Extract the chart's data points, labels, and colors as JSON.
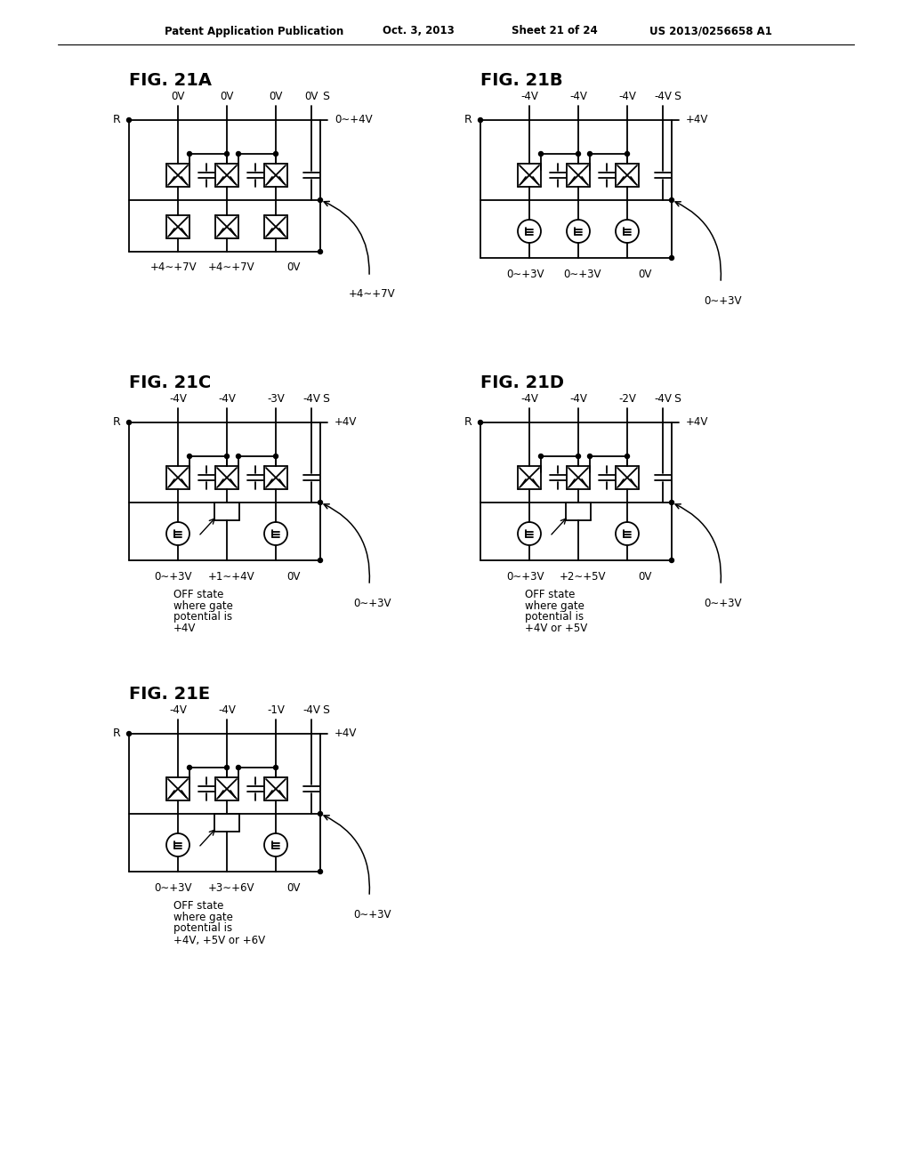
{
  "title_header": "Patent Application Publication",
  "date": "Oct. 3, 2013",
  "sheet": "Sheet 21 of 24",
  "patent": "US 2013/0256658 A1",
  "bg_color": "#ffffff",
  "fig21A": {
    "label": "FIG. 21A",
    "top_voltages": [
      "0V",
      "0V",
      "0V",
      "0V"
    ],
    "right_label": "0∼+4V",
    "bottom_labels": [
      "+4∼+7V",
      "+4∼+7V",
      "0V"
    ],
    "curve_label": "+4∼+7V",
    "has_circles": false
  },
  "fig21B": {
    "label": "FIG. 21B",
    "top_voltages": [
      "-4V",
      "-4V",
      "-4V",
      "-4V"
    ],
    "right_label": "+4V",
    "bottom_labels": [
      "0∼+3V",
      "0∼+3V",
      "0V"
    ],
    "curve_label": "0∼+3V",
    "has_circles": true
  },
  "fig21C": {
    "label": "FIG. 21C",
    "top_voltages": [
      "-4V",
      "-4V",
      "-3V",
      "-4V"
    ],
    "right_label": "+4V",
    "bottom_labels": [
      "0∼+3V",
      "+1∼+4V",
      "0V"
    ],
    "curve_label": "0∼+3V",
    "has_circles": true,
    "mid_special": true,
    "annotation": [
      "OFF state",
      "where gate",
      "potential is",
      "+4V"
    ]
  },
  "fig21D": {
    "label": "FIG. 21D",
    "top_voltages": [
      "-4V",
      "-4V",
      "-2V",
      "-4V"
    ],
    "right_label": "+4V",
    "bottom_labels": [
      "0∼+3V",
      "+2∼+5V",
      "0V"
    ],
    "curve_label": "0∼+3V",
    "has_circles": true,
    "annotation": [
      "OFF state",
      "where gate",
      "potential is",
      "+4V or +5V"
    ]
  },
  "fig21E": {
    "label": "FIG. 21E",
    "top_voltages": [
      "-4V",
      "-4V",
      "-1V",
      "-4V"
    ],
    "right_label": "+4V",
    "bottom_labels": [
      "0∼+3V",
      "+3∼+6V",
      "0V"
    ],
    "curve_label": "0∼+3V",
    "has_circles": true,
    "annotation": [
      "OFF state",
      "where gate",
      "potential is",
      "+4V, +5V or +6V"
    ]
  }
}
